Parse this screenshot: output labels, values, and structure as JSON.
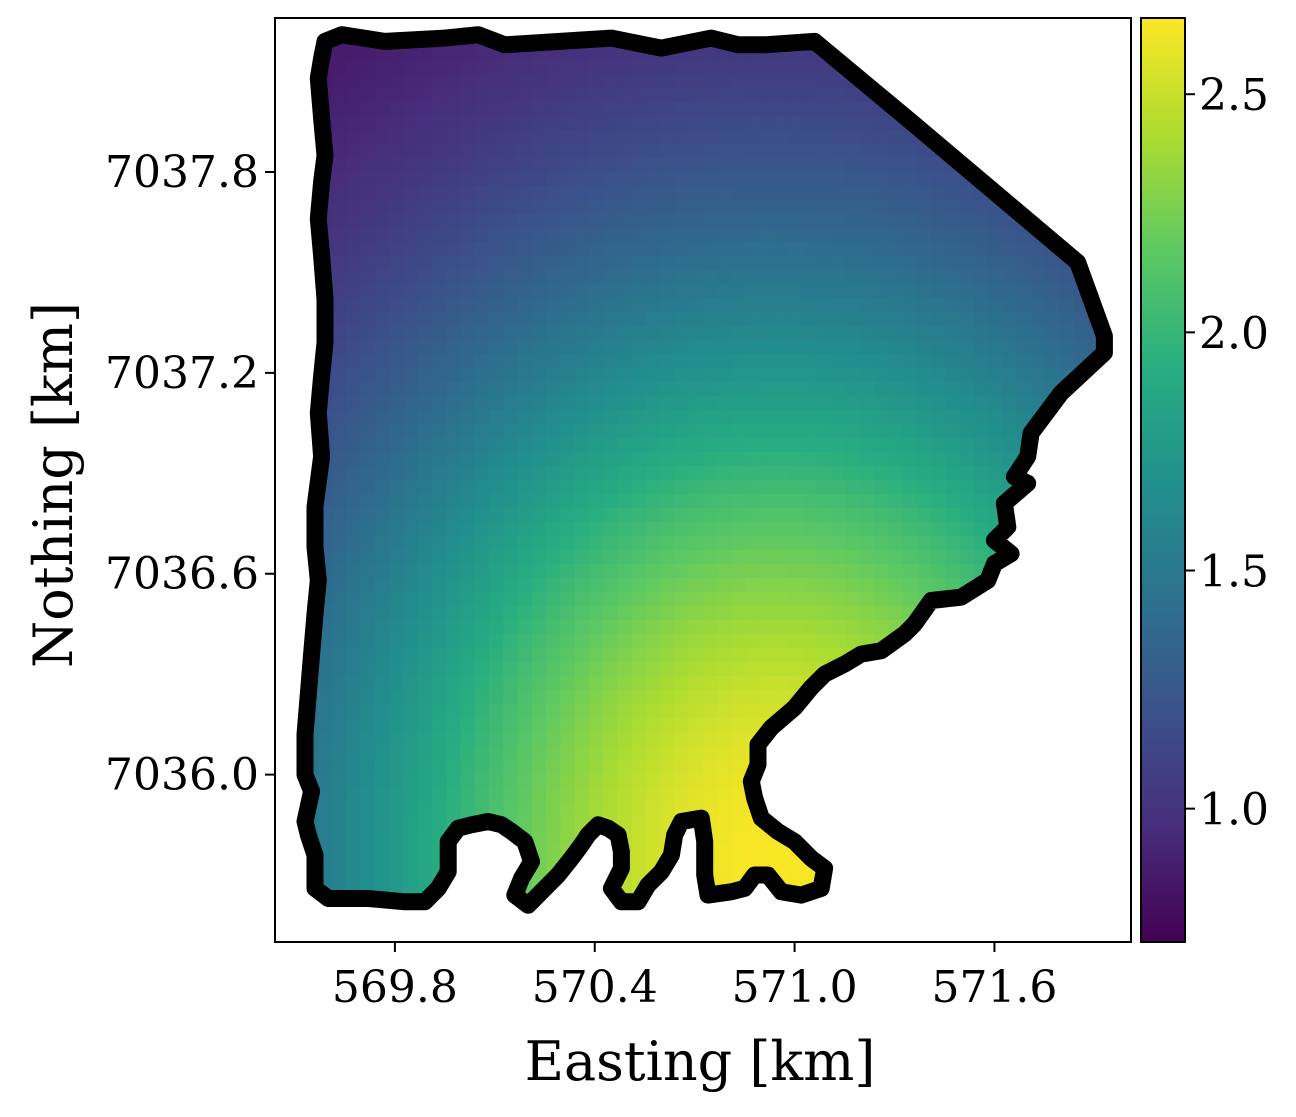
{
  "chart_data": {
    "type": "heatmap",
    "xlabel": "Easting [km]",
    "ylabel": "Nothing [km]",
    "xlim": [
      569.44,
      572.01
    ],
    "ylim": [
      7035.5,
      7038.26
    ],
    "x_ticks": [
      569.8,
      570.4,
      571.0,
      571.6
    ],
    "y_ticks": [
      7036.0,
      7036.6,
      7037.2,
      7037.8
    ],
    "x_tick_labels": [
      "569.8",
      "570.4",
      "571.0",
      "571.6"
    ],
    "y_tick_labels": [
      "7036.0",
      "7036.6",
      "7037.2",
      "7037.8"
    ],
    "colormap": "viridis",
    "colorbar": {
      "range": [
        0.72,
        2.66
      ],
      "ticks": [
        1.0,
        1.5,
        2.0,
        2.5
      ],
      "tick_labels": [
        "1.0",
        "1.5",
        "2.0",
        "2.5"
      ]
    },
    "field": {
      "description_values": [
        {
          "location": "northwest corner",
          "value": 0.75
        },
        {
          "location": "north-east edge",
          "value": 1.2
        },
        {
          "location": "west edge",
          "value": 1.1
        },
        {
          "location": "center",
          "value": 1.8
        },
        {
          "location": "south-central lobe",
          "value": 2.6
        }
      ],
      "peak": {
        "x": 570.95,
        "y": 7035.75,
        "value": 2.65
      }
    },
    "boundary": [
      [
        569.59,
        7038.19
      ],
      [
        569.64,
        7038.21
      ],
      [
        569.77,
        7038.19
      ],
      [
        569.95,
        7038.2
      ],
      [
        570.05,
        7038.21
      ],
      [
        570.13,
        7038.18
      ],
      [
        570.45,
        7038.2
      ],
      [
        570.55,
        7038.18
      ],
      [
        570.6,
        7038.17
      ],
      [
        570.75,
        7038.2
      ],
      [
        570.83,
        7038.18
      ],
      [
        570.91,
        7038.18
      ],
      [
        571.06,
        7038.19
      ],
      [
        571.35,
        7037.95
      ],
      [
        571.85,
        7037.53
      ],
      [
        571.93,
        7037.31
      ],
      [
        571.93,
        7037.26
      ],
      [
        571.8,
        7037.14
      ],
      [
        571.71,
        7037.02
      ],
      [
        571.7,
        7036.95
      ],
      [
        571.66,
        7036.89
      ],
      [
        571.7,
        7036.87
      ],
      [
        571.63,
        7036.81
      ],
      [
        571.64,
        7036.74
      ],
      [
        571.6,
        7036.7
      ],
      [
        571.65,
        7036.66
      ],
      [
        571.6,
        7036.63
      ],
      [
        571.58,
        7036.58
      ],
      [
        571.5,
        7036.53
      ],
      [
        571.41,
        7036.52
      ],
      [
        571.36,
        7036.45
      ],
      [
        571.33,
        7036.42
      ],
      [
        571.26,
        7036.37
      ],
      [
        571.2,
        7036.36
      ],
      [
        571.15,
        7036.33
      ],
      [
        571.09,
        7036.3
      ],
      [
        571.05,
        7036.26
      ],
      [
        571.0,
        7036.2
      ],
      [
        570.93,
        7036.14
      ],
      [
        570.89,
        7036.09
      ],
      [
        570.89,
        7036.03
      ],
      [
        570.87,
        7035.98
      ],
      [
        570.88,
        7035.93
      ],
      [
        570.9,
        7035.87
      ],
      [
        570.95,
        7035.83
      ],
      [
        571.0,
        7035.8
      ],
      [
        571.05,
        7035.75
      ],
      [
        571.09,
        7035.72
      ],
      [
        571.08,
        7035.66
      ],
      [
        571.02,
        7035.64
      ],
      [
        570.96,
        7035.65
      ],
      [
        570.92,
        7035.7
      ],
      [
        570.88,
        7035.7
      ],
      [
        570.85,
        7035.66
      ],
      [
        570.81,
        7035.65
      ],
      [
        570.74,
        7035.64
      ],
      [
        570.73,
        7035.7
      ],
      [
        570.73,
        7035.8
      ],
      [
        570.72,
        7035.87
      ],
      [
        570.66,
        7035.86
      ],
      [
        570.64,
        7035.82
      ],
      [
        570.63,
        7035.76
      ],
      [
        570.6,
        7035.71
      ],
      [
        570.56,
        7035.67
      ],
      [
        570.53,
        7035.62
      ],
      [
        570.48,
        7035.62
      ],
      [
        570.45,
        7035.66
      ],
      [
        570.48,
        7035.72
      ],
      [
        570.48,
        7035.77
      ],
      [
        570.47,
        7035.82
      ],
      [
        570.44,
        7035.84
      ],
      [
        570.41,
        7035.85
      ],
      [
        570.38,
        7035.82
      ],
      [
        570.36,
        7035.79
      ],
      [
        570.33,
        7035.75
      ],
      [
        570.29,
        7035.7
      ],
      [
        570.25,
        7035.66
      ],
      [
        570.2,
        7035.61
      ],
      [
        570.16,
        7035.64
      ],
      [
        570.18,
        7035.69
      ],
      [
        570.21,
        7035.74
      ],
      [
        570.19,
        7035.8
      ],
      [
        570.15,
        7035.83
      ],
      [
        570.12,
        7035.85
      ],
      [
        570.08,
        7035.86
      ],
      [
        570.03,
        7035.85
      ],
      [
        569.99,
        7035.84
      ],
      [
        569.96,
        7035.8
      ],
      [
        569.96,
        7035.71
      ],
      [
        569.93,
        7035.66
      ],
      [
        569.89,
        7035.62
      ],
      [
        569.83,
        7035.62
      ],
      [
        569.72,
        7035.63
      ],
      [
        569.6,
        7035.63
      ],
      [
        569.56,
        7035.66
      ],
      [
        569.56,
        7035.76
      ],
      [
        569.54,
        7035.82
      ],
      [
        569.53,
        7035.86
      ],
      [
        569.55,
        7035.95
      ],
      [
        569.53,
        7036.0
      ],
      [
        569.53,
        7036.12
      ],
      [
        569.54,
        7036.24
      ],
      [
        569.55,
        7036.36
      ],
      [
        569.56,
        7036.48
      ],
      [
        569.57,
        7036.58
      ],
      [
        569.56,
        7036.68
      ],
      [
        569.56,
        7036.8
      ],
      [
        569.58,
        7036.95
      ],
      [
        569.57,
        7037.08
      ],
      [
        569.58,
        7037.19
      ],
      [
        569.59,
        7037.29
      ],
      [
        569.59,
        7037.42
      ],
      [
        569.58,
        7037.55
      ],
      [
        569.57,
        7037.66
      ],
      [
        569.58,
        7037.77
      ],
      [
        569.59,
        7037.85
      ],
      [
        569.58,
        7037.96
      ],
      [
        569.57,
        7038.08
      ],
      [
        569.58,
        7038.14
      ]
    ]
  }
}
